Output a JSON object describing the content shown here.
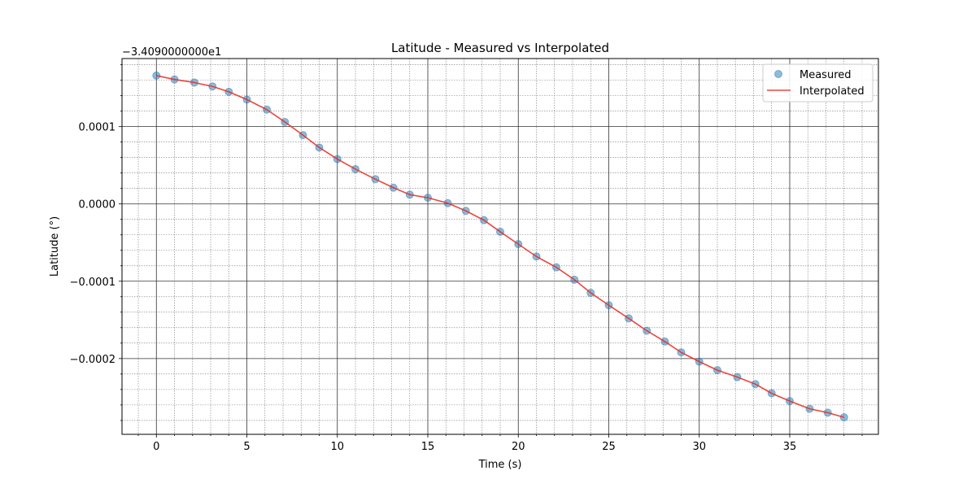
{
  "chart_data": {
    "type": "line",
    "title": "Latitude - Measured vs Interpolated",
    "xlabel": "Time (s)",
    "ylabel": "Latitude (°)",
    "y_offset_label": "−3.4090000000e1",
    "xlim": [
      -1.9,
      39.9
    ],
    "ylim": [
      -0.000298,
      0.000188
    ],
    "x_ticks": [
      0,
      5,
      10,
      15,
      20,
      25,
      30,
      35
    ],
    "x_tick_labels": [
      "0",
      "5",
      "10",
      "15",
      "20",
      "25",
      "30",
      "35"
    ],
    "y_ticks": [
      0.0001,
      0.0,
      -0.0001,
      -0.0002
    ],
    "y_tick_labels": [
      "0.0001",
      "0.0000",
      "−0.0001",
      "−0.0002"
    ],
    "x_minor_step": 1,
    "y_minor_step": 2e-05,
    "grid": true,
    "legend_position": "top-right",
    "colors": {
      "measured": "#1f77b4",
      "interpolated": "#e8312a",
      "major_grid": "#333333",
      "minor_grid": "#777777"
    },
    "series": [
      {
        "name": "Measured",
        "kind": "scatter",
        "x": [
          0.0,
          1.0,
          2.1,
          3.1,
          4.0,
          5.0,
          6.1,
          7.1,
          8.1,
          9.0,
          10.0,
          11.0,
          12.1,
          13.1,
          14.0,
          15.0,
          16.1,
          17.1,
          18.1,
          19.0,
          20.0,
          21.0,
          22.1,
          23.1,
          24.0,
          25.0,
          26.1,
          27.1,
          28.1,
          29.0,
          30.0,
          31.0,
          32.1,
          33.1,
          34.0,
          35.0,
          36.1,
          37.1,
          38.0
        ],
        "y": [
          0.000166,
          0.000161,
          0.000157,
          0.000152,
          0.000145,
          0.000135,
          0.000122,
          0.000106,
          8.9e-05,
          7.3e-05,
          5.8e-05,
          4.5e-05,
          3.2e-05,
          2.1e-05,
          1.2e-05,
          8e-06,
          1e-06,
          -9e-06,
          -2.1e-05,
          -3.6e-05,
          -5.2e-05,
          -6.8e-05,
          -8.2e-05,
          -9.8e-05,
          -0.000115,
          -0.000131,
          -0.000148,
          -0.000164,
          -0.000178,
          -0.000192,
          -0.000204,
          -0.000215,
          -0.000224,
          -0.000233,
          -0.000245,
          -0.000255,
          -0.000265,
          -0.00027,
          -0.000276
        ]
      },
      {
        "name": "Interpolated",
        "kind": "line",
        "x": [
          0.0,
          1.0,
          2.1,
          3.1,
          4.0,
          5.0,
          6.1,
          7.1,
          8.1,
          9.0,
          10.0,
          11.0,
          12.1,
          13.1,
          14.0,
          15.0,
          16.1,
          17.1,
          18.1,
          19.0,
          20.0,
          21.0,
          22.1,
          23.1,
          24.0,
          25.0,
          26.1,
          27.1,
          28.1,
          29.0,
          30.0,
          31.0,
          32.1,
          33.1,
          34.0,
          35.0,
          36.1,
          37.1,
          38.0
        ],
        "y": [
          0.000166,
          0.000161,
          0.000157,
          0.000152,
          0.000145,
          0.000135,
          0.000122,
          0.000106,
          8.9e-05,
          7.3e-05,
          5.8e-05,
          4.5e-05,
          3.2e-05,
          2.1e-05,
          1.2e-05,
          8e-06,
          1e-06,
          -9e-06,
          -2.1e-05,
          -3.6e-05,
          -5.2e-05,
          -6.8e-05,
          -8.2e-05,
          -9.8e-05,
          -0.000115,
          -0.000131,
          -0.000148,
          -0.000164,
          -0.000178,
          -0.000192,
          -0.000204,
          -0.000215,
          -0.000224,
          -0.000233,
          -0.000245,
          -0.000255,
          -0.000265,
          -0.00027,
          -0.000276
        ]
      }
    ]
  }
}
